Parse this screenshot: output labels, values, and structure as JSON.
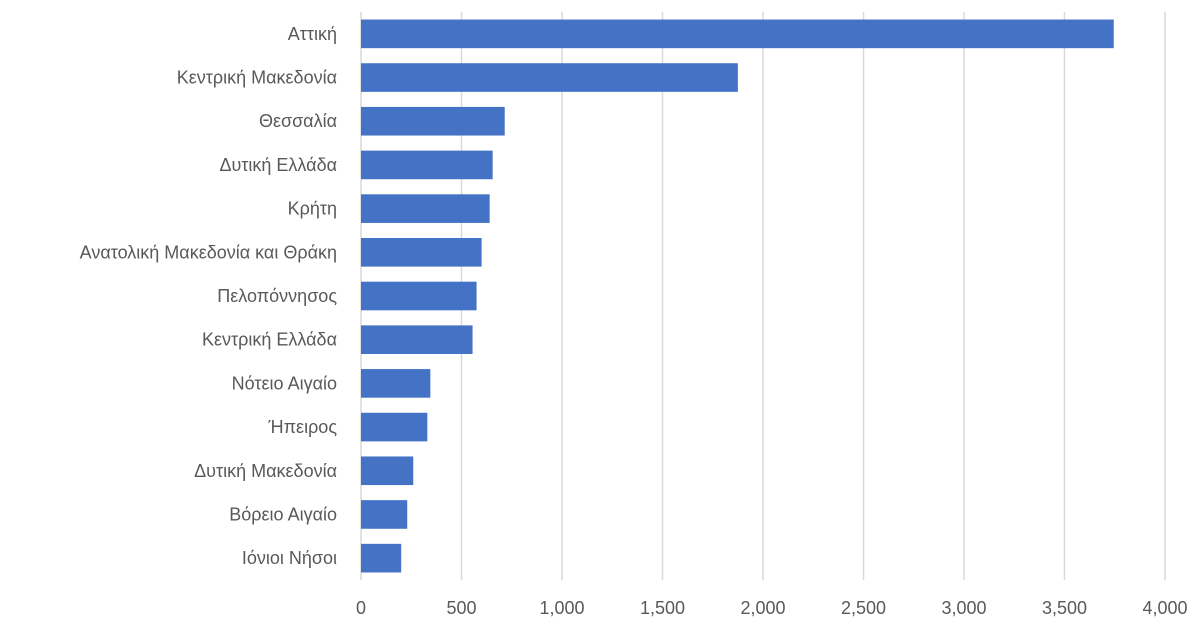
{
  "chart_data": {
    "type": "bar",
    "orientation": "horizontal",
    "title": "",
    "xlabel": "",
    "ylabel": "",
    "xlim": [
      0,
      4000
    ],
    "xticks": [
      0,
      500,
      1000,
      1500,
      2000,
      2500,
      3000,
      3500,
      4000
    ],
    "xtick_labels": [
      "0",
      "500",
      "1,000",
      "1,500",
      "2,000",
      "2,500",
      "3,000",
      "3,500",
      "4,000"
    ],
    "grid": "vertical",
    "legend": "none",
    "bar_color": "#4472c4",
    "categories": [
      "Αττική",
      "Κεντρική Μακεδονία",
      "Θεσσαλία",
      "Δυτική Ελλάδα",
      "Κρήτη",
      "Ανατολική Μακεδονία και Θράκη",
      "Πελοπόννησος",
      "Κεντρική Ελλάδα",
      "Νότειο Αιγαίο",
      "Ήπειρος",
      "Δυτική Μακεδονία",
      "Βόρειο Αιγαίο",
      "Ιόνιοι Νήσοι"
    ],
    "values": [
      3745,
      1875,
      715,
      655,
      640,
      600,
      575,
      555,
      345,
      330,
      260,
      230,
      200
    ]
  }
}
